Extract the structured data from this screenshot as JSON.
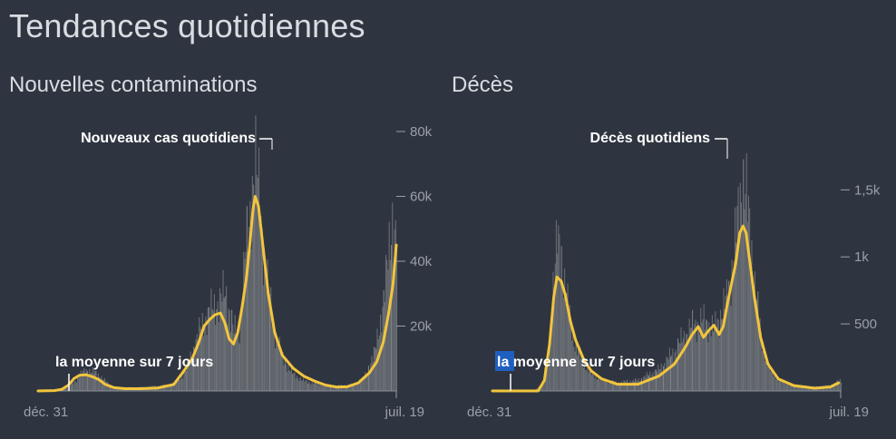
{
  "page": {
    "title": "Tendances quotidiennes"
  },
  "colors": {
    "background": "#2f3540",
    "bars": "#7d8187",
    "bars_area": "#6a6e74",
    "average_line": "#f2c53d",
    "axis": "#9aa0a8",
    "text": "#d9dce1",
    "highlight": "#1f5fbf"
  },
  "chart_data": [
    {
      "type": "bar",
      "title": "Nouvelles contaminations",
      "x_start_label": "déc. 31",
      "x_end_label": "juil. 19",
      "y_ticks": [
        20000,
        40000,
        60000,
        80000
      ],
      "y_tick_labels": [
        "20k",
        "40k",
        "60k",
        "80k"
      ],
      "ylim": [
        0,
        80000
      ],
      "grid": false,
      "bars_annotation": "Nouveaux cas quotidiens",
      "average_annotation": "la moyenne sur 7 jours",
      "series": [
        {
          "name": "Nouveaux cas quotidiens",
          "kind": "daily",
          "points": [
            [
              0,
              0
            ],
            [
              10,
              0
            ],
            [
              20,
              300
            ],
            [
              28,
              1200
            ],
            [
              35,
              3500
            ],
            [
              40,
              5500
            ],
            [
              45,
              6500
            ],
            [
              50,
              5800
            ],
            [
              55,
              5000
            ],
            [
              60,
              3500
            ],
            [
              65,
              2000
            ],
            [
              70,
              1200
            ],
            [
              80,
              1000
            ],
            [
              90,
              1000
            ],
            [
              100,
              1200
            ],
            [
              110,
              1500
            ],
            [
              120,
              1800
            ],
            [
              128,
              3000
            ],
            [
              135,
              6000
            ],
            [
              142,
              12000
            ],
            [
              150,
              20000
            ],
            [
              157,
              24000
            ],
            [
              162,
              26000
            ],
            [
              167,
              28000
            ],
            [
              172,
              30000
            ],
            [
              176,
              25000
            ],
            [
              180,
              18000
            ],
            [
              185,
              20000
            ],
            [
              190,
              40000
            ],
            [
              194,
              50000
            ],
            [
              197,
              65000
            ],
            [
              200,
              70000
            ],
            [
              203,
              60000
            ],
            [
              207,
              45000
            ],
            [
              212,
              30000
            ],
            [
              218,
              18000
            ],
            [
              225,
              10000
            ],
            [
              235,
              5000
            ],
            [
              245,
              3000
            ],
            [
              260,
              2000
            ],
            [
              275,
              1500
            ],
            [
              290,
              2000
            ],
            [
              300,
              4000
            ],
            [
              310,
              12000
            ],
            [
              318,
              28000
            ],
            [
              322,
              40000
            ],
            [
              326,
              55000
            ],
            [
              328,
              48000
            ]
          ]
        },
        {
          "name": "la moyenne sur 7 jours",
          "kind": "average",
          "points": [
            [
              0,
              0
            ],
            [
              15,
              100
            ],
            [
              22,
              500
            ],
            [
              28,
              1800
            ],
            [
              33,
              3800
            ],
            [
              38,
              4800
            ],
            [
              44,
              5000
            ],
            [
              50,
              4400
            ],
            [
              56,
              3500
            ],
            [
              62,
              2000
            ],
            [
              70,
              1000
            ],
            [
              80,
              700
            ],
            [
              95,
              700
            ],
            [
              110,
              900
            ],
            [
              125,
              2000
            ],
            [
              135,
              6500
            ],
            [
              142,
              10000
            ],
            [
              148,
              15000
            ],
            [
              153,
              20000
            ],
            [
              158,
              22000
            ],
            [
              163,
              23500
            ],
            [
              168,
              24000
            ],
            [
              172,
              21000
            ],
            [
              176,
              16000
            ],
            [
              180,
              14500
            ],
            [
              184,
              18000
            ],
            [
              188,
              26000
            ],
            [
              192,
              35000
            ],
            [
              195,
              45000
            ],
            [
              198,
              56000
            ],
            [
              200,
              60000
            ],
            [
              203,
              57000
            ],
            [
              207,
              45000
            ],
            [
              212,
              30000
            ],
            [
              218,
              18000
            ],
            [
              225,
              11000
            ],
            [
              235,
              7000
            ],
            [
              245,
              4500
            ],
            [
              255,
              3000
            ],
            [
              265,
              1800
            ],
            [
              275,
              1200
            ],
            [
              285,
              1300
            ],
            [
              295,
              2500
            ],
            [
              305,
              5500
            ],
            [
              312,
              9000
            ],
            [
              318,
              15000
            ],
            [
              323,
              24000
            ],
            [
              327,
              33000
            ],
            [
              330,
              45000
            ]
          ]
        }
      ]
    },
    {
      "type": "bar",
      "title": "Décès",
      "x_start_label": "déc. 31",
      "x_end_label": "juil. 19",
      "y_ticks": [
        500,
        1000,
        1500
      ],
      "y_tick_labels": [
        "500",
        "1k",
        "1,5k"
      ],
      "ylim": [
        0,
        1800
      ],
      "grid": false,
      "bars_annotation": "Décès quotidiens",
      "average_annotation": "la moyenne sur 7 jours",
      "series": [
        {
          "name": "Décès quotidiens",
          "kind": "daily",
          "points": [
            [
              0,
              0
            ],
            [
              40,
              0
            ],
            [
              48,
              60
            ],
            [
              54,
              300
            ],
            [
              58,
              800
            ],
            [
              62,
              1100
            ],
            [
              66,
              1000
            ],
            [
              70,
              750
            ],
            [
              75,
              500
            ],
            [
              80,
              320
            ],
            [
              88,
              200
            ],
            [
              95,
              130
            ],
            [
              105,
              80
            ],
            [
              120,
              60
            ],
            [
              140,
              80
            ],
            [
              160,
              160
            ],
            [
              175,
              300
            ],
            [
              185,
              420
            ],
            [
              195,
              500
            ],
            [
              205,
              520
            ],
            [
              212,
              450
            ],
            [
              218,
              550
            ],
            [
              224,
              650
            ],
            [
              230,
              900
            ],
            [
              236,
              1300
            ],
            [
              240,
              1600
            ],
            [
              243,
              1500
            ],
            [
              247,
              1200
            ],
            [
              252,
              800
            ],
            [
              258,
              400
            ],
            [
              265,
              180
            ],
            [
              275,
              80
            ],
            [
              290,
              40
            ],
            [
              310,
              30
            ],
            [
              325,
              40
            ],
            [
              335,
              80
            ]
          ]
        },
        {
          "name": "la moyenne sur 7 jours",
          "kind": "average",
          "points": [
            [
              0,
              0
            ],
            [
              44,
              0
            ],
            [
              50,
              80
            ],
            [
              55,
              350
            ],
            [
              59,
              700
            ],
            [
              62,
              850
            ],
            [
              66,
              820
            ],
            [
              70,
              720
            ],
            [
              75,
              520
            ],
            [
              80,
              380
            ],
            [
              88,
              230
            ],
            [
              95,
              150
            ],
            [
              105,
              90
            ],
            [
              120,
              50
            ],
            [
              140,
              50
            ],
            [
              160,
              110
            ],
            [
              175,
              200
            ],
            [
              185,
              320
            ],
            [
              192,
              420
            ],
            [
              198,
              480
            ],
            [
              203,
              400
            ],
            [
              208,
              450
            ],
            [
              213,
              490
            ],
            [
              218,
              420
            ],
            [
              222,
              480
            ],
            [
              226,
              650
            ],
            [
              230,
              800
            ],
            [
              234,
              950
            ],
            [
              238,
              1180
            ],
            [
              241,
              1230
            ],
            [
              244,
              1180
            ],
            [
              247,
              1000
            ],
            [
              252,
              700
            ],
            [
              258,
              400
            ],
            [
              265,
              200
            ],
            [
              275,
              90
            ],
            [
              290,
              40
            ],
            [
              310,
              20
            ],
            [
              325,
              30
            ],
            [
              333,
              60
            ]
          ]
        }
      ]
    }
  ]
}
